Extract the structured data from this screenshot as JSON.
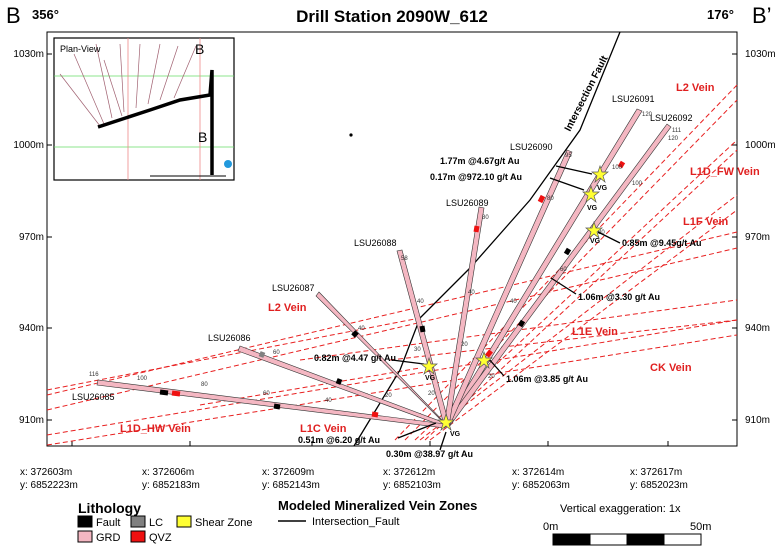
{
  "section": {
    "left_label": "B",
    "right_label": "B’",
    "left_azimuth": "356°",
    "right_azimuth": "176°"
  },
  "title": "Drill Station 2090W_612",
  "inset": {
    "title": "Plan-View",
    "marker_top": "B",
    "marker_bottom": "B"
  },
  "elevations": [
    "1030m",
    "1000m",
    "970m",
    "940m",
    "910m"
  ],
  "fault_label": "Intersection Fault",
  "holes": [
    "LSU26091",
    "LSU26092",
    "LSU26090",
    "LSU26089",
    "LSU26088",
    "LSU26087",
    "LSU26086",
    "LSU26085"
  ],
  "veins": [
    "L2 Vein",
    "L1D_FW Vein",
    "L1F Vein",
    "L1E Vein",
    "CK Vein",
    "L1C Vein",
    "L1D_HW Vein",
    "L2 Vein"
  ],
  "intercepts": [
    "1.77m @4.67g/t Au",
    "0.17m @972.10 g/t Au",
    "0.85m @9.45g/t Au",
    "1.06m @3.30 g/t Au",
    "0.82m @4.47 g/t Au",
    "1.06m @3.85 g/t Au",
    "0.51m @6.20 g/t Au",
    "0.30m @38.97 g/t Au"
  ],
  "vg": "VG",
  "coords": [
    {
      "x": "x: 372603m",
      "y": "y: 6852223m"
    },
    {
      "x": "x: 372606m",
      "y": "y: 6852183m"
    },
    {
      "x": "x: 372609m",
      "y": "y: 6852143m"
    },
    {
      "x": "x: 372612m",
      "y": "y: 6852103m"
    },
    {
      "x": "x: 372614m",
      "y": "y: 6852063m"
    },
    {
      "x": "x: 372617m",
      "y": "y: 6852023m"
    }
  ],
  "legend": {
    "lithology_title": "Lithology",
    "items": [
      "Fault",
      "LC",
      "Shear Zone",
      "GRD",
      "QVZ"
    ],
    "colors": {
      "fault": "#000000",
      "lc": "#808080",
      "shear": "#ffff33",
      "grd": "#f4b7c2",
      "qvz": "#ee1111"
    },
    "zones_title": "Modeled Mineralized Vein Zones",
    "fault_line": "Intersection_Fault",
    "vert_exag": "Vertical exaggeration: 1x",
    "scale_start": "0m",
    "scale_end": "50m"
  }
}
